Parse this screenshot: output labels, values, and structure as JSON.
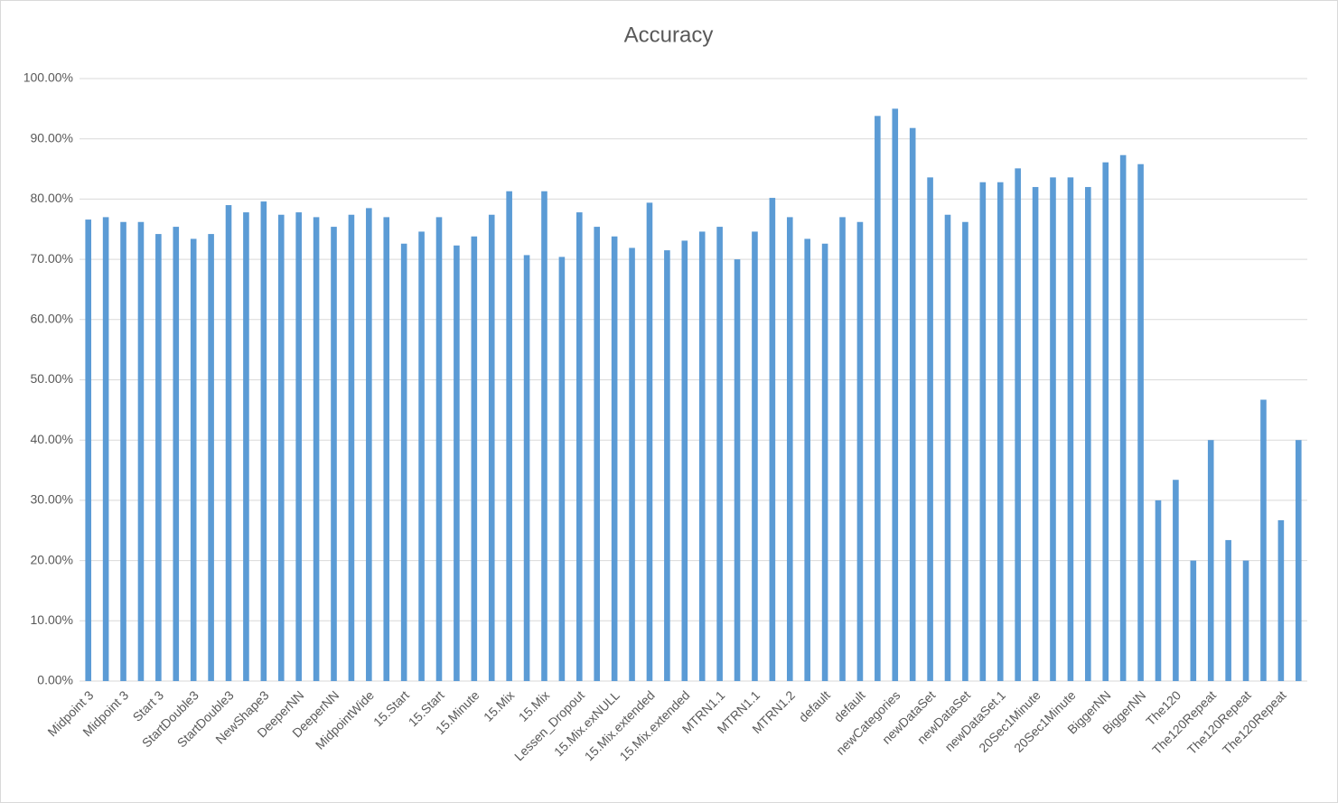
{
  "chart_data": {
    "type": "bar",
    "title": "Accuracy",
    "categories": [
      "Midpoint 3",
      null,
      "Midpoint 3",
      null,
      "Start 3",
      null,
      "StartDouble3",
      null,
      "StartDouble3",
      null,
      "NewShape3",
      null,
      "DeeperNN",
      null,
      "DeeperNN",
      null,
      "MidpointWide",
      null,
      "15.Start",
      null,
      "15.Start",
      null,
      "15.Minute",
      null,
      "15.Mix",
      null,
      "15.Mix",
      null,
      "Lessen_Dropout",
      null,
      "15.Mix.exNULL",
      null,
      "15.Mix.extended",
      null,
      "15.Mix.extended",
      null,
      "MTRN1.1",
      null,
      "MTRN1.1",
      null,
      "MTRN1.2",
      null,
      "default",
      null,
      "default",
      null,
      "newCategories",
      null,
      "newDataSet",
      null,
      "newDataSet",
      null,
      "newDataSet.1",
      null,
      "20Sec1Minute",
      null,
      "20Sec1Minute",
      null,
      "BiggerNN",
      null,
      "BiggerNN",
      null,
      "The120",
      null,
      "The120Repeat",
      null,
      "The120Repeat",
      null,
      "The120Repeat",
      null
    ],
    "values": [
      76.6,
      77.0,
      76.2,
      76.2,
      74.2,
      75.4,
      73.4,
      74.2,
      79.0,
      77.8,
      79.6,
      77.4,
      77.8,
      77.0,
      75.4,
      77.4,
      78.5,
      77.0,
      72.6,
      74.6,
      77.0,
      72.3,
      73.8,
      77.4,
      81.3,
      70.7,
      81.3,
      70.4,
      77.8,
      75.4,
      73.8,
      71.9,
      79.4,
      71.5,
      73.1,
      74.6,
      75.4,
      70.0,
      74.6,
      80.2,
      77.0,
      73.4,
      72.6,
      77.0,
      76.2,
      93.8,
      95.0,
      91.8,
      83.6,
      77.4,
      76.2,
      82.8,
      82.8,
      85.1,
      82.0,
      83.6,
      83.6,
      82.0,
      86.1,
      87.3,
      85.8,
      30.0,
      33.4,
      20.0,
      40.0,
      23.4,
      20.0,
      46.7,
      26.7,
      40.0
    ],
    "color": "#5b9bd5",
    "ylim": [
      0,
      100
    ],
    "yticks": [
      {
        "value": 0,
        "label": "0.00%"
      },
      {
        "value": 10,
        "label": "10.00%"
      },
      {
        "value": 20,
        "label": "20.00%"
      },
      {
        "value": 30,
        "label": "30.00%"
      },
      {
        "value": 40,
        "label": "40.00%"
      },
      {
        "value": 50,
        "label": "50.00%"
      },
      {
        "value": 60,
        "label": "60.00%"
      },
      {
        "value": 70,
        "label": "70.00%"
      },
      {
        "value": 80,
        "label": "80.00%"
      },
      {
        "value": 90,
        "label": "90.00%"
      },
      {
        "value": 100,
        "label": "100.00%"
      }
    ],
    "grid": true
  }
}
